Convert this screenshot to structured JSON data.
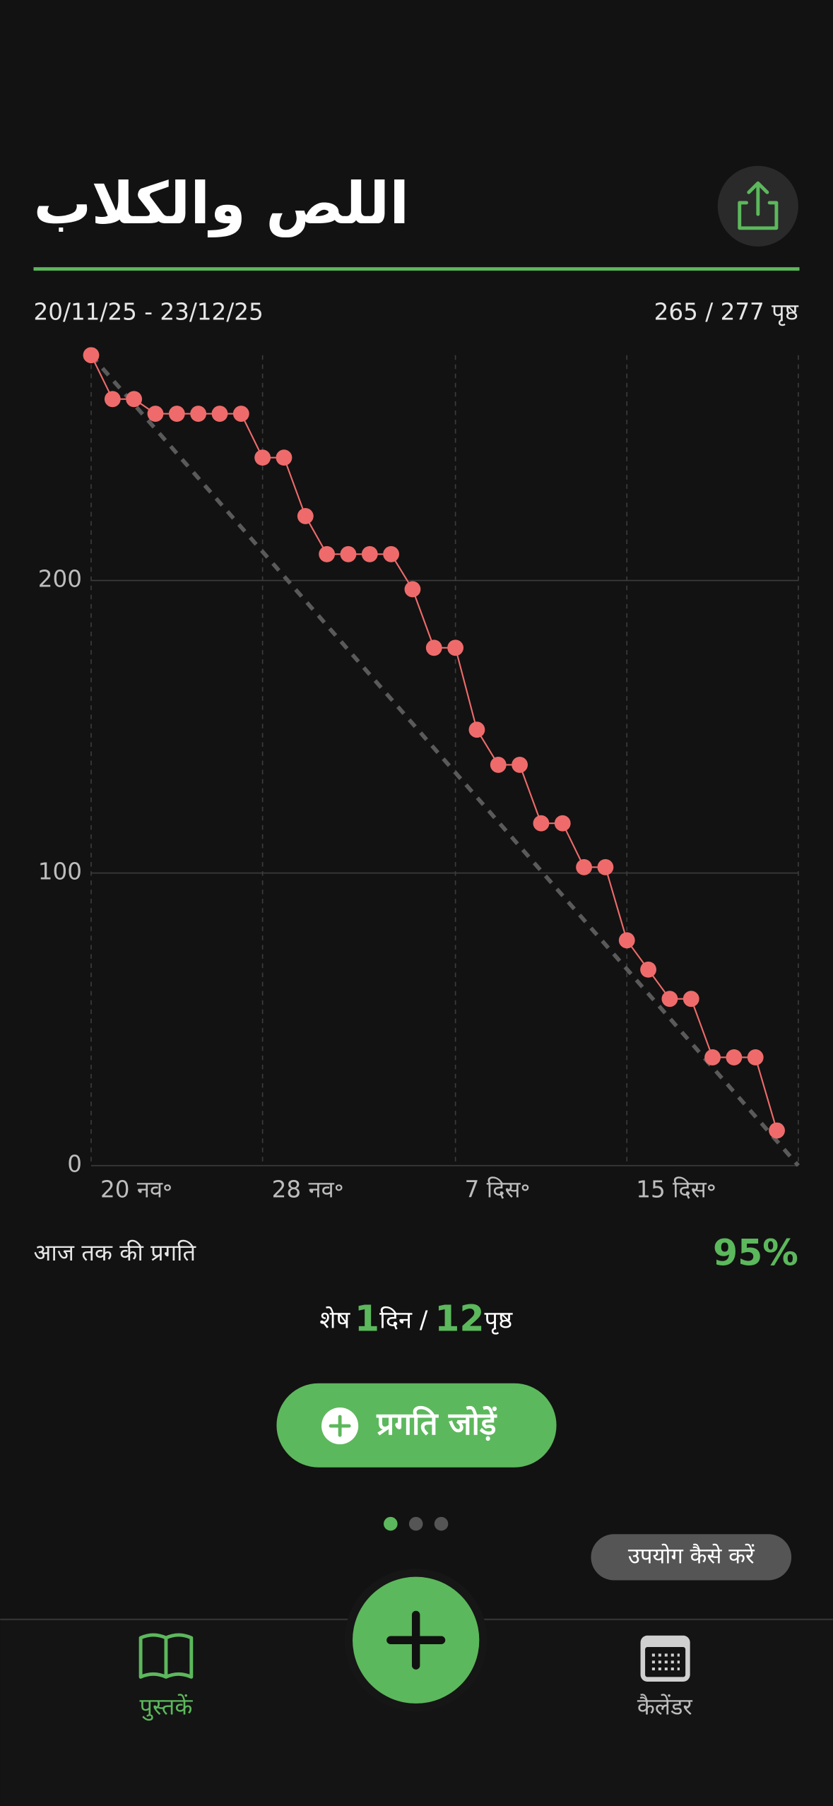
{
  "header": {
    "title": "اللص والكلاب",
    "date_range": "20/11/25 - 23/12/25",
    "pages": "265 / 277 पृष्ठ"
  },
  "chart_data": {
    "type": "line",
    "categories": [
      "20 नव॰",
      null,
      null,
      null,
      null,
      null,
      null,
      null,
      "28 नव॰",
      null,
      null,
      null,
      null,
      null,
      null,
      null,
      null,
      "7 दिस॰",
      null,
      null,
      null,
      null,
      null,
      null,
      null,
      "15 दिस॰",
      null,
      null,
      null,
      null,
      null,
      null,
      null,
      null
    ],
    "series": [
      {
        "color": "#ef6b6b",
        "values": [
          277,
          262,
          262,
          257,
          257,
          257,
          257,
          257,
          242,
          242,
          222,
          209,
          209,
          209,
          209,
          197,
          177,
          177,
          149,
          137,
          137,
          117,
          117,
          102,
          102,
          77,
          67,
          57,
          57,
          37,
          37,
          37,
          12,
          null
        ]
      }
    ],
    "ideal": {
      "values": [
        277,
        0
      ],
      "color": "#5a5a5a"
    },
    "ylim": [
      0,
      277
    ],
    "yticks": [
      0,
      100,
      200
    ],
    "grid": true
  },
  "progress": {
    "label": "आज तक की प्रगति",
    "percent": "95%"
  },
  "remaining": {
    "prefix": "शेष",
    "days": "1",
    "days_unit": "दिन /",
    "pages": "12",
    "pages_unit": "पृष्ठ"
  },
  "button": "प्रगति जोड़ें",
  "help": "उपयोग कैसे करें",
  "tabs": [
    "पुस्तकें",
    "कैलेंडर"
  ]
}
